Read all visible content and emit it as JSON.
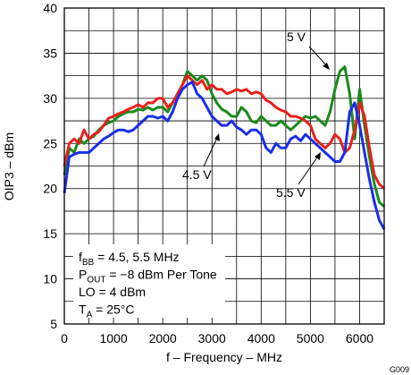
{
  "chart_data": {
    "type": "line",
    "title": "",
    "xlabel": "f – Frequency – MHz",
    "ylabel": "OIP3 – dBm",
    "xlim": [
      0,
      6500
    ],
    "ylim": [
      5,
      40
    ],
    "xticks": [
      0,
      1000,
      2000,
      3000,
      4000,
      5000,
      6000
    ],
    "yticks": [
      5,
      10,
      15,
      20,
      25,
      30,
      35,
      40
    ],
    "grid": true,
    "figure_id": "G009",
    "conditions": [
      {
        "main": "f",
        "sub": "BB",
        "rest": " = 4.5, 5.5 MHz"
      },
      {
        "main": "P",
        "sub": "OUT",
        "rest": " = −8 dBm Per Tone"
      },
      {
        "main": "LO = 4 dBm",
        "sub": "",
        "rest": ""
      },
      {
        "main": "T",
        "sub": "A",
        "rest": " = 25°C"
      }
    ],
    "series": [
      {
        "name": "5 V",
        "color": "#1a8a1a",
        "x": [
          0,
          100,
          200,
          300,
          400,
          500,
          600,
          700,
          800,
          900,
          1000,
          1100,
          1200,
          1300,
          1400,
          1500,
          1600,
          1700,
          1800,
          1900,
          2000,
          2100,
          2200,
          2300,
          2400,
          2500,
          2600,
          2700,
          2800,
          2900,
          3000,
          3100,
          3200,
          3300,
          3400,
          3500,
          3600,
          3700,
          3800,
          3900,
          4000,
          4100,
          4200,
          4300,
          4400,
          4500,
          4600,
          4700,
          4800,
          4900,
          5000,
          5100,
          5200,
          5300,
          5400,
          5500,
          5600,
          5700,
          5800,
          5900,
          6000,
          6100,
          6200,
          6300,
          6400,
          6500
        ],
        "y": [
          21.5,
          24.5,
          24.0,
          25.5,
          25.0,
          25.5,
          25.8,
          26.5,
          27.0,
          27.3,
          27.5,
          28.0,
          28.3,
          28.5,
          28.5,
          28.8,
          28.7,
          29.0,
          28.7,
          29.0,
          29.0,
          28.5,
          29.5,
          30.5,
          31.5,
          33.0,
          32.5,
          32.0,
          32.5,
          32.0,
          30.5,
          29.5,
          28.8,
          28.5,
          28.0,
          28.0,
          29.0,
          28.5,
          27.5,
          27.3,
          28.0,
          27.5,
          27.0,
          27.0,
          27.5,
          27.0,
          26.5,
          27.0,
          27.5,
          28.0,
          27.8,
          28.0,
          27.5,
          27.0,
          28.5,
          31.0,
          33.0,
          33.5,
          30.5,
          25.5,
          31.0,
          27.0,
          23.5,
          20.5,
          18.5,
          18.0
        ]
      },
      {
        "name": "5.5 V",
        "color": "#e8201c",
        "x": [
          0,
          100,
          200,
          300,
          400,
          500,
          600,
          700,
          800,
          900,
          1000,
          1100,
          1200,
          1300,
          1400,
          1500,
          1600,
          1700,
          1800,
          1900,
          2000,
          2100,
          2200,
          2300,
          2400,
          2500,
          2600,
          2700,
          2800,
          2900,
          3000,
          3100,
          3200,
          3300,
          3400,
          3500,
          3600,
          3700,
          3800,
          3900,
          4000,
          4100,
          4200,
          4300,
          4400,
          4500,
          4600,
          4700,
          4800,
          4900,
          5000,
          5100,
          5200,
          5300,
          5400,
          5500,
          5600,
          5700,
          5800,
          5900,
          6000,
          6100,
          6200,
          6300,
          6400,
          6500
        ],
        "y": [
          22.5,
          25.0,
          25.5,
          25.0,
          26.5,
          25.5,
          26.0,
          26.3,
          27.0,
          27.8,
          28.0,
          28.3,
          28.5,
          28.8,
          29.0,
          29.3,
          29.0,
          29.5,
          29.5,
          30.0,
          30.0,
          29.0,
          29.5,
          30.5,
          31.5,
          32.5,
          32.0,
          31.5,
          32.0,
          31.0,
          31.5,
          31.0,
          31.0,
          30.5,
          30.7,
          31.0,
          30.8,
          31.0,
          30.5,
          30.7,
          30.5,
          29.8,
          29.5,
          29.0,
          28.7,
          28.5,
          28.0,
          28.0,
          27.8,
          27.5,
          27.0,
          25.5,
          25.0,
          24.5,
          25.0,
          26.0,
          25.5,
          24.0,
          24.5,
          26.5,
          29.5,
          28.0,
          24.5,
          21.5,
          20.5,
          20.0
        ]
      },
      {
        "name": "4.5 V",
        "color": "#1a2ee8",
        "x": [
          0,
          100,
          200,
          300,
          400,
          500,
          600,
          700,
          800,
          900,
          1000,
          1100,
          1200,
          1300,
          1400,
          1500,
          1600,
          1700,
          1800,
          1900,
          2000,
          2100,
          2200,
          2300,
          2400,
          2500,
          2600,
          2700,
          2800,
          2900,
          3000,
          3100,
          3200,
          3300,
          3400,
          3500,
          3600,
          3700,
          3800,
          3900,
          4000,
          4100,
          4200,
          4300,
          4400,
          4500,
          4600,
          4700,
          4800,
          4900,
          5000,
          5100,
          5200,
          5300,
          5400,
          5500,
          5600,
          5700,
          5800,
          5900,
          6000,
          6100,
          6200,
          6300,
          6400,
          6500
        ],
        "y": [
          19.5,
          23.5,
          23.8,
          24.0,
          24.0,
          24.0,
          24.5,
          25.0,
          25.5,
          25.8,
          26.2,
          26.5,
          26.5,
          26.3,
          26.5,
          27.0,
          27.5,
          28.0,
          28.0,
          27.8,
          28.0,
          27.5,
          28.5,
          30.0,
          31.0,
          31.5,
          31.8,
          30.5,
          30.0,
          29.0,
          28.0,
          27.5,
          27.0,
          27.0,
          27.5,
          26.8,
          26.5,
          26.0,
          26.5,
          26.5,
          26.0,
          24.5,
          24.0,
          25.0,
          24.5,
          24.5,
          25.5,
          25.8,
          25.3,
          26.0,
          25.5,
          25.0,
          24.5,
          24.0,
          23.5,
          23.0,
          23.0,
          24.0,
          28.5,
          29.5,
          27.0,
          24.0,
          21.0,
          18.5,
          16.5,
          15.5
        ]
      }
    ],
    "annotations": [
      {
        "text": "5 V",
        "series": "5 V"
      },
      {
        "text": "4.5 V",
        "series": "4.5 V"
      },
      {
        "text": "5.5 V",
        "series": "5.5 V"
      }
    ]
  }
}
